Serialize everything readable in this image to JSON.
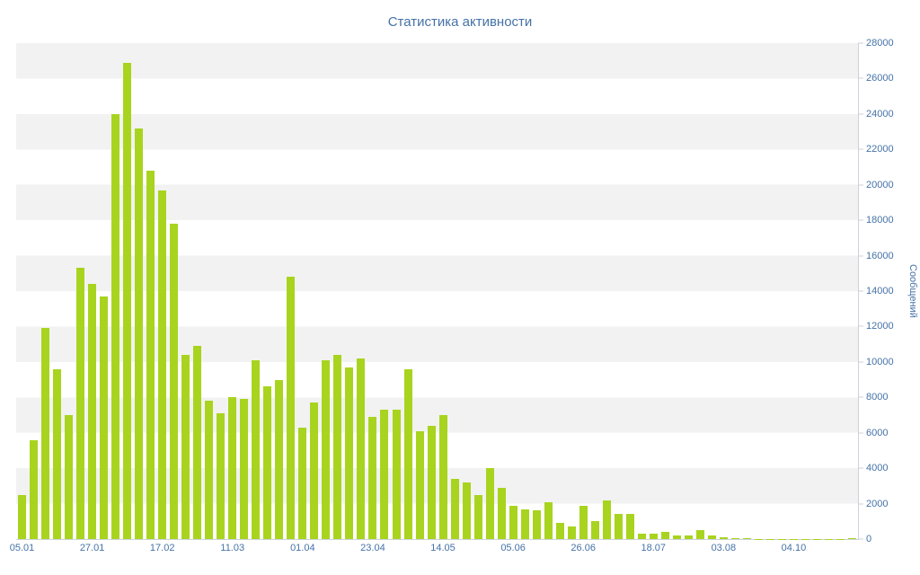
{
  "title": "Статистика активности",
  "y_axis": {
    "title": "Сообщений",
    "min": 0,
    "max": 28000,
    "tick_step": 2000
  },
  "x_axis": {
    "tick_labels": [
      "05.01",
      "27.01",
      "17.02",
      "11.03",
      "01.04",
      "23.04",
      "14.05",
      "05.06",
      "26.06",
      "18.07",
      "03.08",
      "04.10"
    ]
  },
  "colors": {
    "bar": "#a8d41f",
    "title": "#4572a7",
    "axis_label": "#4572a7",
    "stripe": "#f2f2f2",
    "axis_line": "#ccd2da",
    "background": "#ffffff"
  },
  "chart_data": {
    "type": "bar",
    "title": "Статистика активности",
    "xlabel": "",
    "ylabel": "Сообщений",
    "ylim": [
      0,
      28000
    ],
    "grid": "alternating horizontal bands every 2000",
    "legend": "none",
    "y_axis_side": "right",
    "x_tick_labels": [
      "05.01",
      "27.01",
      "17.02",
      "11.03",
      "01.04",
      "23.04",
      "14.05",
      "05.06",
      "26.06",
      "18.07",
      "03.08",
      "04.10"
    ],
    "x_tick_positions": [
      0,
      6,
      12,
      18,
      24,
      30,
      36,
      42,
      48,
      54,
      60,
      66
    ],
    "values": [
      2500,
      5600,
      11900,
      9600,
      7000,
      15300,
      14400,
      13700,
      24000,
      26900,
      23200,
      20800,
      19700,
      17800,
      10400,
      10900,
      7800,
      7100,
      8000,
      7900,
      10100,
      8600,
      9000,
      14800,
      6300,
      7700,
      10100,
      10400,
      9700,
      10200,
      6900,
      7300,
      7300,
      9600,
      6100,
      6400,
      7000,
      3400,
      3200,
      2500,
      4000,
      2900,
      1900,
      1700,
      1600,
      2100,
      900,
      700,
      1900,
      1000,
      2200,
      1400,
      1400,
      300,
      300,
      400,
      200,
      200,
      500,
      200,
      100,
      50,
      30,
      20,
      20,
      10,
      10,
      10,
      10,
      10,
      20,
      30
    ]
  }
}
